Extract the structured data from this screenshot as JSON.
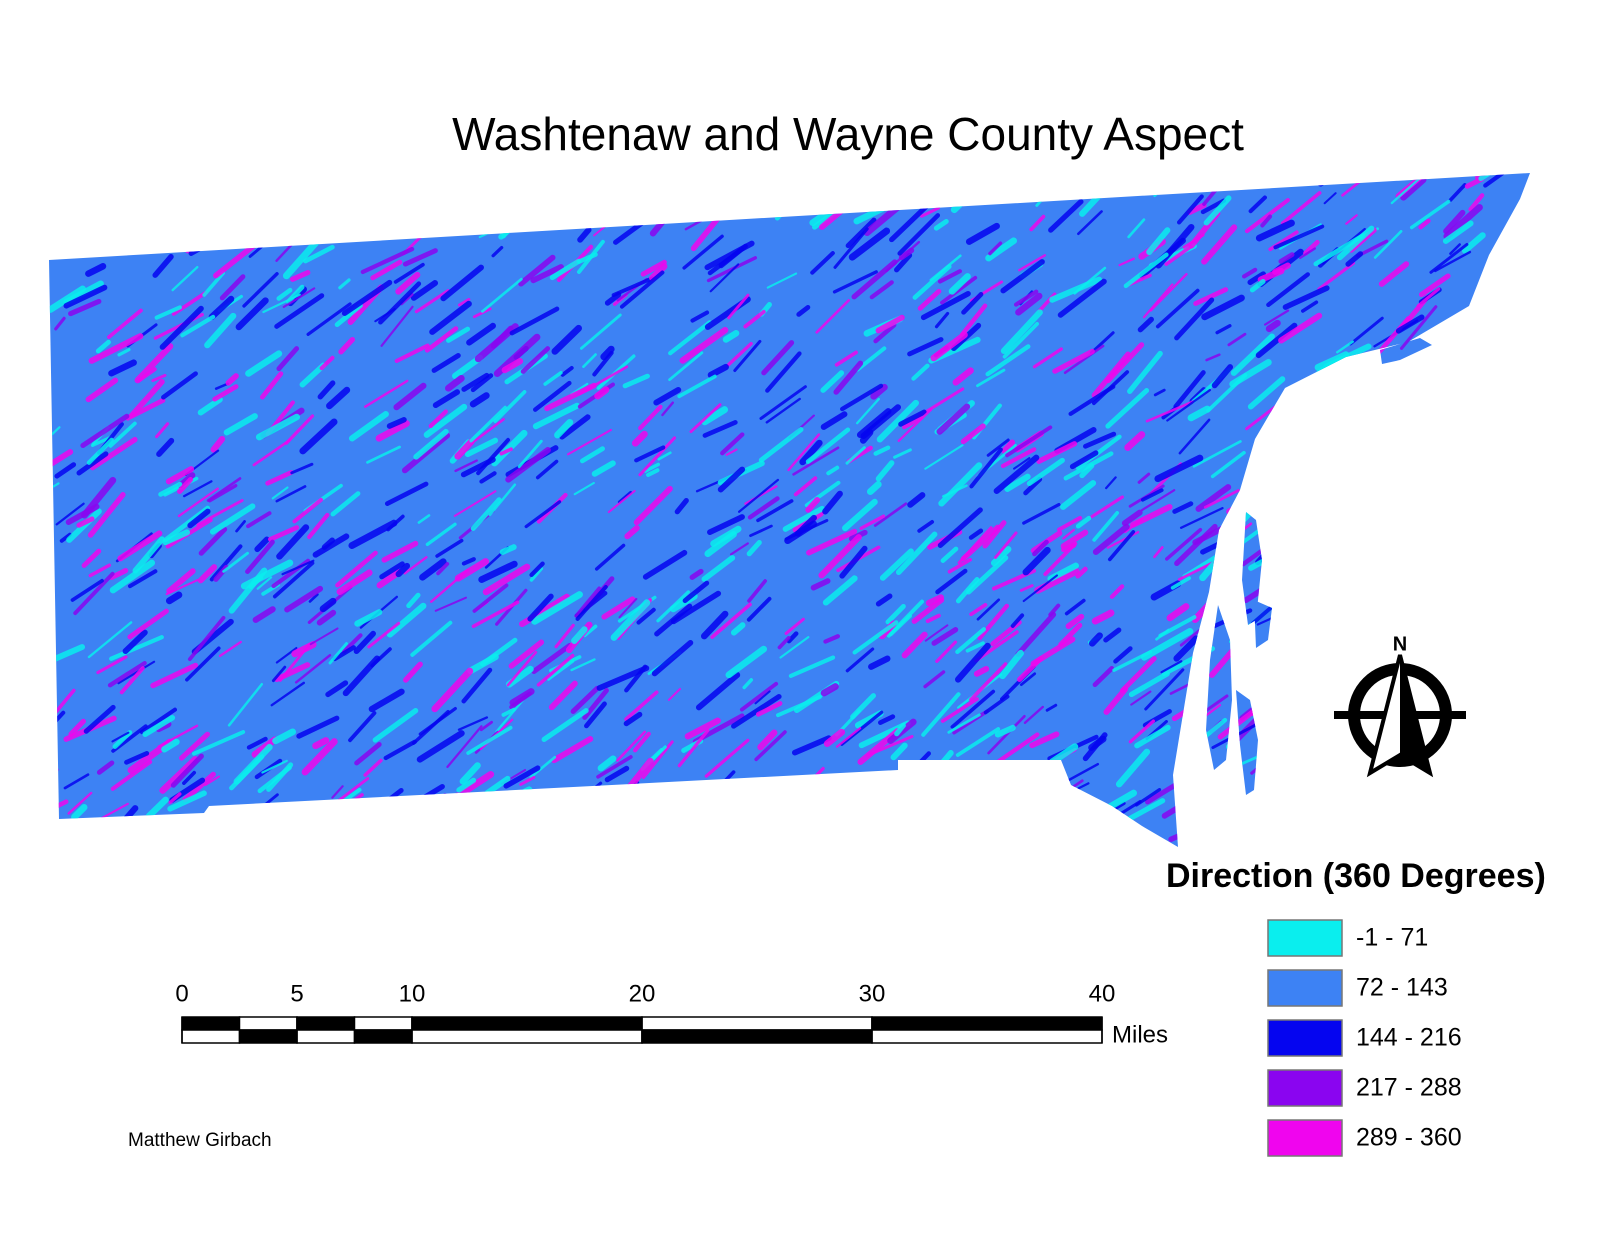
{
  "title": "Washtenaw and Wayne County Aspect",
  "legend": {
    "title": "Direction (360 Degrees)",
    "items": [
      {
        "label": "-1 - 71",
        "color": "#0aeeee"
      },
      {
        "label": "72 - 143",
        "color": "#3d82f4"
      },
      {
        "label": "144 - 216",
        "color": "#0505f0"
      },
      {
        "label": "217 - 288",
        "color": "#8a05f0"
      },
      {
        "label": "289 - 360",
        "color": "#f005ee"
      }
    ]
  },
  "scale_bar": {
    "ticks": [
      0,
      5,
      10,
      20,
      30,
      40
    ],
    "unit": "Miles"
  },
  "north_arrow": {
    "label": "N"
  },
  "author": "Matthew Girbach"
}
